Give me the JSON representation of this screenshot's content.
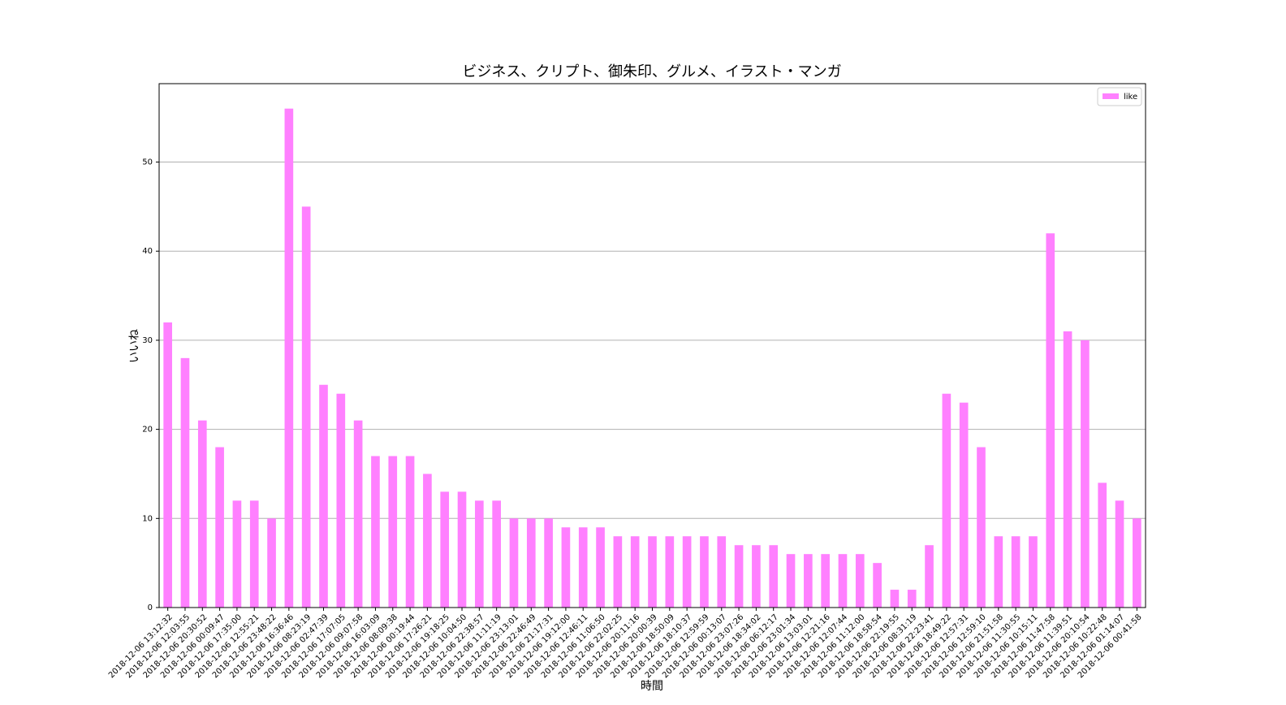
{
  "chart_data": {
    "type": "bar",
    "title": "ビジネス、クリプト、御朱印、グルメ、イラスト・マンガ",
    "x_label": "時間",
    "y_label": "いいね",
    "categories": [
      "2018-12-06 13:12:32",
      "2018-12-06 12:03:55",
      "2018-12-06 20:30:52",
      "2018-12-06 00:09:47",
      "2018-12-06 17:35:00",
      "2018-12-06 12:55:21",
      "2018-12-06 23:48:22",
      "2018-12-06 16:36:46",
      "2018-12-06 08:23:19",
      "2018-12-06 02:47:39",
      "2018-12-06 17:07:05",
      "2018-12-06 09:07:58",
      "2018-12-06 16:03:09",
      "2018-12-06 08:09:38",
      "2018-12-06 00:19:44",
      "2018-12-06 17:26:21",
      "2018-12-06 19:18:25",
      "2018-12-06 10:04:50",
      "2018-12-06 22:38:57",
      "2018-12-06 11:11:19",
      "2018-12-06 23:13:01",
      "2018-12-06 22:46:49",
      "2018-12-06 21:17:31",
      "2018-12-06 19:12:00",
      "2018-12-06 12:46:11",
      "2018-12-06 11:06:50",
      "2018-12-06 22:02:25",
      "2018-12-06 20:11:16",
      "2018-12-06 20:00:39",
      "2018-12-06 18:50:09",
      "2018-12-06 18:10:37",
      "2018-12-06 12:59:59",
      "2018-12-06 00:13:07",
      "2018-12-06 23:07:26",
      "2018-12-06 18:34:02",
      "2018-12-06 06:12:17",
      "2018-12-06 23:01:34",
      "2018-12-06 13:03:01",
      "2018-12-06 12:21:16",
      "2018-12-06 12:07:44",
      "2018-12-06 11:12:00",
      "2018-12-06 18:58:54",
      "2018-12-06 22:19:55",
      "2018-12-06 08:31:19",
      "2018-12-06 22:23:41",
      "2018-12-06 18:49:22",
      "2018-12-06 12:57:31",
      "2018-12-06 12:59:10",
      "2018-12-06 21:51:58",
      "2018-12-06 11:30:55",
      "2018-12-06 10:15:11",
      "2018-12-06 11:47:58",
      "2018-12-06 11:39:51",
      "2018-12-06 20:10:54",
      "2018-12-06 10:22:48",
      "2018-12-06 01:14:07",
      "2018-12-06 00:41:58"
    ],
    "series": [
      {
        "name": "like",
        "color": "#ff80ff",
        "values": [
          32,
          28,
          21,
          18,
          12,
          12,
          10,
          56,
          45,
          25,
          24,
          21,
          17,
          17,
          17,
          15,
          13,
          13,
          12,
          12,
          10,
          10,
          10,
          9,
          9,
          9,
          8,
          8,
          8,
          8,
          8,
          8,
          8,
          7,
          7,
          7,
          6,
          6,
          6,
          6,
          6,
          5,
          2,
          2,
          7,
          24,
          23,
          18,
          8,
          8,
          8,
          42,
          31,
          30,
          14,
          12,
          10
        ]
      }
    ],
    "ylim": [
      0,
      58.8
    ],
    "yticks": [
      0,
      10,
      20,
      30,
      40,
      50
    ],
    "grid": true,
    "legend": "upper right"
  }
}
